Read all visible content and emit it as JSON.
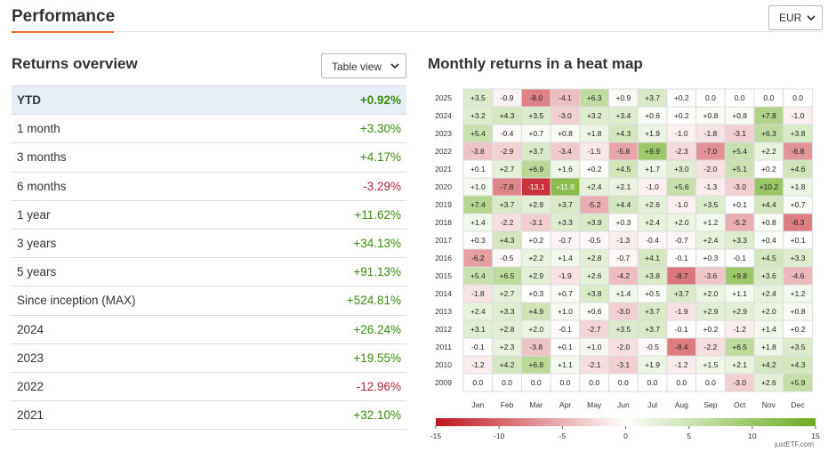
{
  "header": {
    "title": "Performance",
    "currency": "EUR"
  },
  "returns": {
    "title": "Returns overview",
    "view_option": "Table view",
    "rows": [
      {
        "label": "YTD",
        "value": "+0.92%"
      },
      {
        "label": "1 month",
        "value": "+3.30%"
      },
      {
        "label": "3 months",
        "value": "+4.17%"
      },
      {
        "label": "6 months",
        "value": "-3.29%"
      },
      {
        "label": "1 year",
        "value": "+11.62%"
      },
      {
        "label": "3 years",
        "value": "+34.13%"
      },
      {
        "label": "5 years",
        "value": "+91.13%"
      },
      {
        "label": "Since inception (MAX)",
        "value": "+524.81%"
      },
      {
        "label": "2024",
        "value": "+26.24%"
      },
      {
        "label": "2023",
        "value": "+19.55%"
      },
      {
        "label": "2022",
        "value": "-12.96%"
      },
      {
        "label": "2021",
        "value": "+32.10%"
      }
    ]
  },
  "heatmap": {
    "title": "Monthly returns in a heat map",
    "attribution": "justETF.com"
  },
  "colors": {
    "positive": "#3c8a0f",
    "negative": "#b0243c",
    "accent": "#f06c28",
    "heat_pos": "#6aab1e",
    "heat_neg": "#c0151e"
  },
  "chart_data": {
    "type": "heatmap",
    "title": "Monthly returns in a heat map",
    "x": [
      "Jan",
      "Feb",
      "Mar",
      "Apr",
      "May",
      "Jun",
      "Jul",
      "Aug",
      "Sep",
      "Oct",
      "Nov",
      "Dec"
    ],
    "y": [
      "2025",
      "2024",
      "2023",
      "2022",
      "2021",
      "2020",
      "2019",
      "2018",
      "2017",
      "2016",
      "2015",
      "2014",
      "2013",
      "2012",
      "2011",
      "2010",
      "2009"
    ],
    "values": [
      [
        "+3.5",
        "-0.9",
        "-8.0",
        "-4.1",
        "+6.3",
        "+0.9",
        "+3.7",
        "+0.2",
        "0.0",
        "0.0",
        "0.0",
        "0.0"
      ],
      [
        "+3.2",
        "+4.3",
        "+3.5",
        "-3.0",
        "+3.2",
        "+3.4",
        "+0.6",
        "+0.2",
        "+0.8",
        "+0.8",
        "+7.8",
        "-1.0"
      ],
      [
        "+5.4",
        "-0.4",
        "+0.7",
        "+0.8",
        "+1.8",
        "+4.3",
        "+1.9",
        "-1.0",
        "-1.8",
        "-3.1",
        "+6.3",
        "+3.8"
      ],
      [
        "-3.8",
        "-2.9",
        "+3.7",
        "-3.4",
        "-1.5",
        "-5.8",
        "+9.9",
        "-2.3",
        "-7.0",
        "+5.4",
        "+2.2",
        "-6.8"
      ],
      [
        "+0.1",
        "+2.7",
        "+6.9",
        "+1.6",
        "+0.2",
        "+4.5",
        "+1.7",
        "+3.0",
        "-2.0",
        "+5.1",
        "+0.2",
        "+4.6"
      ],
      [
        "+1.0",
        "-7.8",
        "-13.1",
        "+11.8",
        "+2.4",
        "+2.1",
        "-1.0",
        "+5.6",
        "-1.3",
        "-3.0",
        "+10.2",
        "+1.8"
      ],
      [
        "+7.4",
        "+3.7",
        "+2.9",
        "+3.7",
        "-5.2",
        "+4.4",
        "+2.6",
        "-1.0",
        "+3.5",
        "+0.1",
        "+4.4",
        "+0.7"
      ],
      [
        "+1.4",
        "-2.2",
        "-3.1",
        "+3.3",
        "+3.9",
        "+0.3",
        "+2.4",
        "+2.0",
        "+1.2",
        "-5.2",
        "+0.8",
        "-8.3"
      ],
      [
        "+0.3",
        "+4.3",
        "+0.2",
        "-0.7",
        "-0.5",
        "-1.3",
        "-0.4",
        "-0.7",
        "+2.4",
        "+3.3",
        "+0.4",
        "+0.1"
      ],
      [
        "-6.2",
        "-0.5",
        "+2.2",
        "+1.4",
        "+2.8",
        "-0.7",
        "+4.1",
        "-0.1",
        "+0.3",
        "-0.1",
        "+4.5",
        "+3.3"
      ],
      [
        "+5.4",
        "+6.5",
        "+2.9",
        "-1.9",
        "+2.6",
        "-4.2",
        "+3.8",
        "-8.7",
        "-3.6",
        "+9.8",
        "+3.6",
        "-4.6"
      ],
      [
        "-1.8",
        "+2.7",
        "+0.3",
        "+0.7",
        "+3.8",
        "+1.4",
        "+0.5",
        "+3.7",
        "+2.0",
        "+1.1",
        "+2.4",
        "+1.2"
      ],
      [
        "+2.4",
        "+3.3",
        "+4.9",
        "+1.0",
        "+0.6",
        "-3.0",
        "+3.7",
        "-1.9",
        "+2.9",
        "+2.9",
        "+2.0",
        "+0.8"
      ],
      [
        "+3.1",
        "+2.8",
        "+2.0",
        "-0.1",
        "-2.7",
        "+3.5",
        "+3.7",
        "-0.1",
        "+0.2",
        "-1.2",
        "+1.4",
        "+0.2"
      ],
      [
        "-0.1",
        "+2.3",
        "-3.8",
        "+0.1",
        "+1.0",
        "-2.0",
        "-0.5",
        "-8.4",
        "-2.2",
        "+6.5",
        "+1.8",
        "+3.5"
      ],
      [
        "-1.2",
        "+4.2",
        "+6.8",
        "+1.1",
        "-2.1",
        "-3.1",
        "+1.9",
        "-1.2",
        "+1.5",
        "+2.1",
        "+4.2",
        "+4.3"
      ],
      [
        "0.0",
        "0.0",
        "0.0",
        "0.0",
        "0.0",
        "0.0",
        "0.0",
        "0.0",
        "0.0",
        "-3.0",
        "+2.6",
        "+5.9"
      ]
    ],
    "color_scale": {
      "min": -15,
      "max": 15,
      "ticks": [
        "-15",
        "-10",
        "-5",
        "0",
        "5",
        "10",
        "15"
      ]
    }
  }
}
